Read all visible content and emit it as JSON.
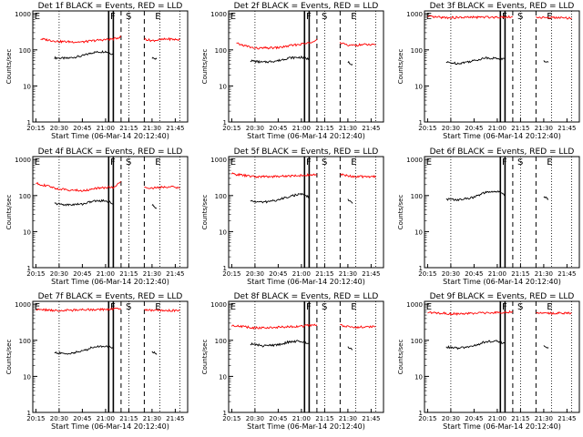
{
  "chart_data": [
    {
      "type": "line",
      "title": "Det 1f BLACK = Events, RED = LLD",
      "xlabel": "Start Time (06-Mar-14 20:12:40)",
      "ylabel": "Counts/sec",
      "y_scale": "log",
      "ylim": [
        1,
        1200
      ],
      "xlim": [
        "20:13",
        "21:53"
      ],
      "x_tick_labels": [
        "20:15",
        "20:30",
        "20:45",
        "21:00",
        "21:15",
        "21:30",
        "21:45"
      ],
      "y_tick_labels": [
        "1",
        "10",
        "100",
        "1000"
      ],
      "flag_labels": [
        "E",
        "F",
        "S",
        "E"
      ],
      "series": [
        {
          "name": "Events",
          "color": "#000000",
          "segments": [
            {
              "x": [
                "20:27",
                "20:35",
                "20:45",
                "20:52",
                "21:00",
                "21:05"
              ],
              "y": [
                60,
                58,
                68,
                85,
                90,
                75
              ]
            },
            {
              "x": [
                "21:30",
                "21:33"
              ],
              "y": [
                60,
                55
              ]
            }
          ]
        },
        {
          "name": "LLD",
          "color": "#ff0000",
          "segments": [
            {
              "x": [
                "20:18",
                "20:30",
                "20:45",
                "20:55",
                "21:05",
                "21:10"
              ],
              "y": [
                200,
                170,
                165,
                185,
                200,
                230
              ]
            },
            {
              "x": [
                "21:25",
                "21:30",
                "21:40",
                "21:48"
              ],
              "y": [
                200,
                180,
                200,
                190
              ]
            }
          ]
        }
      ]
    },
    {
      "type": "line",
      "title": "Det 2f BLACK = Events, RED = LLD",
      "xlabel": "Start Time (06-Mar-14 20:12:40)",
      "ylabel": "Counts/sec",
      "y_scale": "log",
      "ylim": [
        1,
        1200
      ],
      "xlim": [
        "20:13",
        "21:53"
      ],
      "x_tick_labels": [
        "20:15",
        "20:30",
        "20:45",
        "21:00",
        "21:15",
        "21:30",
        "21:45"
      ],
      "y_tick_labels": [
        "1",
        "10",
        "100",
        "1000"
      ],
      "flag_labels": [
        "E",
        "F",
        "S",
        "E"
      ],
      "series": [
        {
          "name": "Events",
          "color": "#000000",
          "segments": [
            {
              "x": [
                "20:27",
                "20:35",
                "20:45",
                "20:52",
                "21:00",
                "21:05"
              ],
              "y": [
                50,
                45,
                50,
                60,
                62,
                55
              ]
            },
            {
              "x": [
                "21:30",
                "21:33"
              ],
              "y": [
                45,
                40
              ]
            }
          ]
        },
        {
          "name": "LLD",
          "color": "#ff0000",
          "segments": [
            {
              "x": [
                "20:18",
                "20:30",
                "20:45",
                "20:55",
                "21:05",
                "21:10"
              ],
              "y": [
                150,
                110,
                115,
                135,
                155,
                200
              ]
            },
            {
              "x": [
                "21:25",
                "21:30",
                "21:40",
                "21:48"
              ],
              "y": [
                160,
                130,
                140,
                135
              ]
            }
          ]
        }
      ]
    },
    {
      "type": "line",
      "title": "Det 3f BLACK = Events, RED = LLD",
      "xlabel": "Start Time (06-Mar-14 20:12:40)",
      "ylabel": "Counts/sec",
      "y_scale": "log",
      "ylim": [
        1,
        1200
      ],
      "xlim": [
        "20:13",
        "21:53"
      ],
      "x_tick_labels": [
        "20:15",
        "20:30",
        "20:45",
        "21:00",
        "21:15",
        "21:30",
        "21:45"
      ],
      "y_tick_labels": [
        "1",
        "10",
        "100",
        "1000"
      ],
      "flag_labels": [
        "E",
        "F",
        "S",
        "E"
      ],
      "series": [
        {
          "name": "Events",
          "color": "#000000",
          "segments": [
            {
              "x": [
                "20:27",
                "20:35",
                "20:45",
                "20:52",
                "21:00",
                "21:05"
              ],
              "y": [
                45,
                42,
                50,
                60,
                58,
                55
              ]
            },
            {
              "x": [
                "21:30",
                "21:33"
              ],
              "y": [
                50,
                45
              ]
            }
          ]
        },
        {
          "name": "LLD",
          "color": "#ff0000",
          "segments": [
            {
              "x": [
                "20:15",
                "20:30",
                "20:45",
                "21:00",
                "21:10"
              ],
              "y": [
                820,
                780,
                800,
                810,
                830
              ]
            },
            {
              "x": [
                "21:25",
                "21:35",
                "21:48"
              ],
              "y": [
                800,
                780,
                760
              ]
            }
          ]
        }
      ]
    },
    {
      "type": "line",
      "title": "Det 4f BLACK = Events, RED = LLD",
      "xlabel": "Start Time (06-Mar-14 20:12:40)",
      "ylabel": "Counts/sec",
      "y_scale": "log",
      "ylim": [
        1,
        1200
      ],
      "xlim": [
        "20:13",
        "21:53"
      ],
      "x_tick_labels": [
        "20:15",
        "20:30",
        "20:45",
        "21:00",
        "21:15",
        "21:30",
        "21:45"
      ],
      "y_tick_labels": [
        "1",
        "10",
        "100",
        "1000"
      ],
      "flag_labels": [
        "E",
        "F",
        "S",
        "E"
      ],
      "series": [
        {
          "name": "Events",
          "color": "#000000",
          "segments": [
            {
              "x": [
                "20:27",
                "20:35",
                "20:45",
                "20:52",
                "21:00",
                "21:05"
              ],
              "y": [
                60,
                55,
                58,
                70,
                72,
                60
              ]
            },
            {
              "x": [
                "21:30",
                "21:33"
              ],
              "y": [
                55,
                45
              ]
            }
          ]
        },
        {
          "name": "LLD",
          "color": "#ff0000",
          "segments": [
            {
              "x": [
                "20:15",
                "20:30",
                "20:45",
                "20:55",
                "21:05",
                "21:10"
              ],
              "y": [
                220,
                150,
                135,
                160,
                170,
                240
              ]
            },
            {
              "x": [
                "21:25",
                "21:30",
                "21:40",
                "21:48"
              ],
              "y": [
                170,
                160,
                175,
                165
              ]
            }
          ]
        }
      ]
    },
    {
      "type": "line",
      "title": "Det 5f BLACK = Events, RED = LLD",
      "xlabel": "Start Time (06-Mar-14 20:12:40)",
      "ylabel": "Counts/sec",
      "y_scale": "log",
      "ylim": [
        1,
        1200
      ],
      "xlim": [
        "20:13",
        "21:53"
      ],
      "x_tick_labels": [
        "20:15",
        "20:30",
        "20:45",
        "21:00",
        "21:15",
        "21:30",
        "21:45"
      ],
      "y_tick_labels": [
        "1",
        "10",
        "100",
        "1000"
      ],
      "flag_labels": [
        "E",
        "F",
        "S",
        "E"
      ],
      "series": [
        {
          "name": "Events",
          "color": "#000000",
          "segments": [
            {
              "x": [
                "20:27",
                "20:35",
                "20:45",
                "20:52",
                "21:00",
                "21:05"
              ],
              "y": [
                70,
                65,
                75,
                95,
                110,
                90
              ]
            },
            {
              "x": [
                "21:30",
                "21:33"
              ],
              "y": [
                75,
                60
              ]
            }
          ]
        },
        {
          "name": "LLD",
          "color": "#ff0000",
          "segments": [
            {
              "x": [
                "20:15",
                "20:30",
                "20:45",
                "21:00",
                "21:10"
              ],
              "y": [
                400,
                330,
                340,
                360,
                380
              ]
            },
            {
              "x": [
                "21:25",
                "21:35",
                "21:48"
              ],
              "y": [
                380,
                330,
                340
              ]
            }
          ]
        }
      ]
    },
    {
      "type": "line",
      "title": "Det 6f BLACK = Events, RED = LLD",
      "xlabel": "Start Time (06-Mar-14 20:12:40)",
      "ylabel": "Counts/sec",
      "y_scale": "log",
      "ylim": [
        1,
        1200
      ],
      "xlim": [
        "20:13",
        "21:53"
      ],
      "x_tick_labels": [
        "20:15",
        "20:30",
        "20:45",
        "21:00",
        "21:15",
        "21:30",
        "21:45"
      ],
      "y_tick_labels": [
        "1",
        "10",
        "100",
        "1000"
      ],
      "flag_labels": [
        "E",
        "F",
        "S",
        "E"
      ],
      "series": [
        {
          "name": "Events",
          "color": "#000000",
          "segments": [
            {
              "x": [
                "20:27",
                "20:35",
                "20:45",
                "20:52",
                "21:00",
                "21:05"
              ],
              "y": [
                80,
                75,
                90,
                120,
                130,
                105
              ]
            },
            {
              "x": [
                "21:30",
                "21:33"
              ],
              "y": [
                90,
                80
              ]
            }
          ]
        },
        {
          "name": "LLD",
          "color": "#ff0000",
          "segments": []
        }
      ]
    },
    {
      "type": "line",
      "title": "Det 7f BLACK = Events, RED = LLD",
      "xlabel": "Start Time (06-Mar-14 20:12:40)",
      "ylabel": "Counts/sec",
      "y_scale": "log",
      "ylim": [
        1,
        1200
      ],
      "xlim": [
        "20:13",
        "21:53"
      ],
      "x_tick_labels": [
        "20:15",
        "20:30",
        "20:45",
        "21:00",
        "21:15",
        "21:30",
        "21:45"
      ],
      "y_tick_labels": [
        "1",
        "10",
        "100",
        "1000"
      ],
      "flag_labels": [
        "E",
        "F",
        "S",
        "E"
      ],
      "series": [
        {
          "name": "Events",
          "color": "#000000",
          "segments": [
            {
              "x": [
                "20:27",
                "20:35",
                "20:45",
                "20:52",
                "21:00",
                "21:05"
              ],
              "y": [
                45,
                42,
                50,
                65,
                70,
                60
              ]
            },
            {
              "x": [
                "21:30",
                "21:33"
              ],
              "y": [
                50,
                40
              ]
            }
          ]
        },
        {
          "name": "LLD",
          "color": "#ff0000",
          "segments": [
            {
              "x": [
                "20:15",
                "20:30",
                "20:45",
                "21:00",
                "21:10"
              ],
              "y": [
                720,
                660,
                700,
                720,
                750
              ]
            },
            {
              "x": [
                "21:25",
                "21:35",
                "21:48"
              ],
              "y": [
                700,
                660,
                680
              ]
            }
          ]
        }
      ]
    },
    {
      "type": "line",
      "title": "Det 8f BLACK = Events, RED = LLD",
      "xlabel": "Start Time (06-Mar-14 20:12:40)",
      "ylabel": "Counts/sec",
      "y_scale": "log",
      "ylim": [
        1,
        1200
      ],
      "xlim": [
        "20:13",
        "21:53"
      ],
      "x_tick_labels": [
        "20:15",
        "20:30",
        "20:45",
        "21:00",
        "21:15",
        "21:30",
        "21:45"
      ],
      "y_tick_labels": [
        "1",
        "10",
        "100",
        "1000"
      ],
      "flag_labels": [
        "E",
        "F",
        "S",
        "E"
      ],
      "series": [
        {
          "name": "Events",
          "color": "#000000",
          "segments": [
            {
              "x": [
                "20:27",
                "20:35",
                "20:45",
                "20:52",
                "21:00",
                "21:05"
              ],
              "y": [
                80,
                70,
                75,
                90,
                95,
                80
              ]
            },
            {
              "x": [
                "21:30",
                "21:33"
              ],
              "y": [
                65,
                55
              ]
            }
          ]
        },
        {
          "name": "LLD",
          "color": "#ff0000",
          "segments": [
            {
              "x": [
                "20:15",
                "20:30",
                "20:45",
                "21:00",
                "21:10"
              ],
              "y": [
                260,
                220,
                230,
                245,
                270
              ]
            },
            {
              "x": [
                "21:25",
                "21:35",
                "21:48"
              ],
              "y": [
                260,
                230,
                240
              ]
            }
          ]
        }
      ]
    },
    {
      "type": "line",
      "title": "Det 9f BLACK = Events, RED = LLD",
      "xlabel": "Start Time (06-Mar-14 20:12:40)",
      "ylabel": "Counts/sec",
      "y_scale": "log",
      "ylim": [
        1,
        1200
      ],
      "xlim": [
        "20:13",
        "21:53"
      ],
      "x_tick_labels": [
        "20:15",
        "20:30",
        "20:45",
        "21:00",
        "21:15",
        "21:30",
        "21:45"
      ],
      "y_tick_labels": [
        "1",
        "10",
        "100",
        "1000"
      ],
      "flag_labels": [
        "E",
        "F",
        "S",
        "E"
      ],
      "series": [
        {
          "name": "Events",
          "color": "#000000",
          "segments": [
            {
              "x": [
                "20:27",
                "20:35",
                "20:45",
                "20:52",
                "21:00",
                "21:05"
              ],
              "y": [
                65,
                60,
                70,
                90,
                95,
                80
              ]
            },
            {
              "x": [
                "21:30",
                "21:33"
              ],
              "y": [
                70,
                60
              ]
            }
          ]
        },
        {
          "name": "LLD",
          "color": "#ff0000",
          "segments": [
            {
              "x": [
                "20:15",
                "20:30",
                "20:45",
                "21:00",
                "21:10"
              ],
              "y": [
                600,
                540,
                560,
                580,
                620
              ]
            },
            {
              "x": [
                "21:25",
                "21:35",
                "21:48"
              ],
              "y": [
                600,
                560,
                570
              ]
            }
          ]
        }
      ]
    }
  ],
  "event_lines": {
    "solid": [
      "21:02",
      "21:05"
    ],
    "dashed": [
      "21:10",
      "21:25"
    ],
    "dotted": [
      "20:30",
      "21:15",
      "21:35",
      "21:48"
    ]
  },
  "colors": {
    "events": "#000000",
    "lld": "#ff0000",
    "background": "#ffffff"
  }
}
